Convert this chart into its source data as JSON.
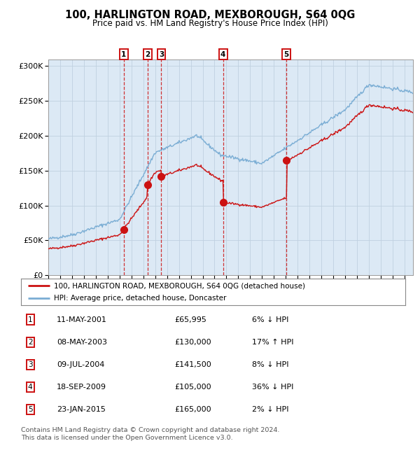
{
  "title": "100, HARLINGTON ROAD, MEXBOROUGH, S64 0QG",
  "subtitle": "Price paid vs. HM Land Registry's House Price Index (HPI)",
  "legend_line1": "100, HARLINGTON ROAD, MEXBOROUGH, S64 0QG (detached house)",
  "legend_line2": "HPI: Average price, detached house, Doncaster",
  "transactions": [
    {
      "num": 1,
      "date": "11-MAY-2001",
      "price": 65995,
      "pct": "6%",
      "dir": "↓",
      "year": 2001.36
    },
    {
      "num": 2,
      "date": "08-MAY-2003",
      "price": 130000,
      "pct": "17%",
      "dir": "↑",
      "year": 2003.36
    },
    {
      "num": 3,
      "date": "09-JUL-2004",
      "price": 141500,
      "pct": "8%",
      "dir": "↓",
      "year": 2004.52
    },
    {
      "num": 4,
      "date": "18-SEP-2009",
      "price": 105000,
      "pct": "36%",
      "dir": "↓",
      "year": 2009.71
    },
    {
      "num": 5,
      "date": "23-JAN-2015",
      "price": 165000,
      "pct": "2%",
      "dir": "↓",
      "year": 2015.06
    }
  ],
  "hpi_color": "#7aadd4",
  "sale_color": "#cc1111",
  "background_color": "#dce9f5",
  "grid_color": "#c0d0e0",
  "footnote1": "Contains HM Land Registry data © Crown copyright and database right 2024.",
  "footnote2": "This data is licensed under the Open Government Licence v3.0.",
  "ylim": [
    0,
    310000
  ],
  "xlim_start": 1995.0,
  "xlim_end": 2025.7
}
